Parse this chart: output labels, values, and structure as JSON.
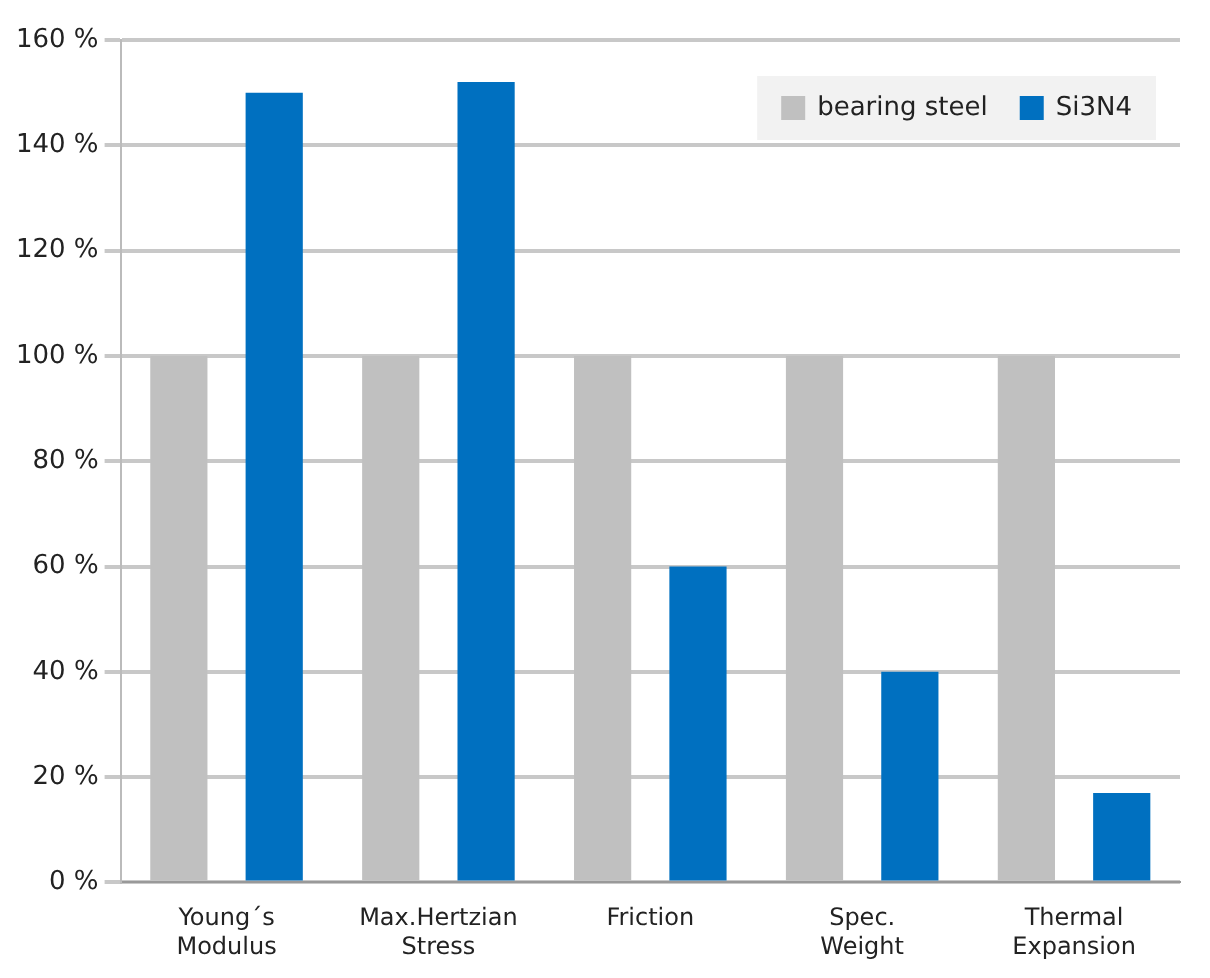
{
  "chart_data": {
    "type": "bar",
    "categories": [
      "Young´s\nModulus",
      "Max.Hertzian\nStress",
      "Friction",
      "Spec.\nWeight",
      "Thermal\nExpansion"
    ],
    "series": [
      {
        "name": "bearing steel",
        "color": "#c0c0c0",
        "values": [
          100,
          100,
          100,
          100,
          100
        ]
      },
      {
        "name": "Si3N4",
        "color": "#0070c0",
        "values": [
          150,
          152,
          60,
          40,
          17
        ]
      }
    ],
    "ylim": [
      0,
      160
    ],
    "yticks": [
      {
        "value": 0,
        "label": "0 %"
      },
      {
        "value": 20,
        "label": "20 %"
      },
      {
        "value": 40,
        "label": "40 %"
      },
      {
        "value": 60,
        "label": "60 %"
      },
      {
        "value": 80,
        "label": "80 %"
      },
      {
        "value": 100,
        "label": "100 %"
      },
      {
        "value": 120,
        "label": "120 %"
      },
      {
        "value": 140,
        "label": "140 %"
      },
      {
        "value": 160,
        "label": "160 %"
      }
    ],
    "grid": "y",
    "legend": "top right"
  }
}
